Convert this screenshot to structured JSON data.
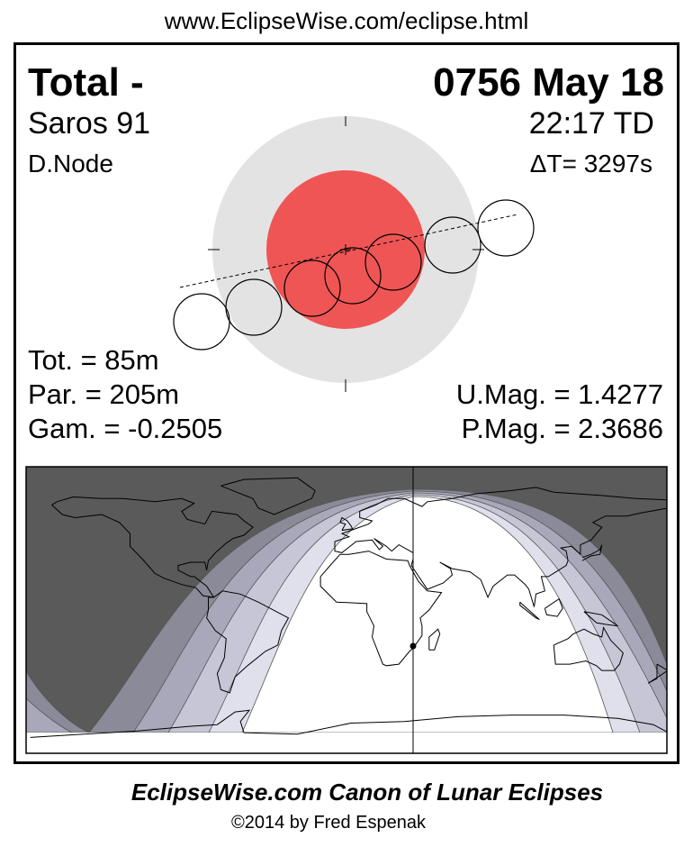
{
  "header": {
    "url": "www.EclipseWise.com/eclipse.html"
  },
  "eclipse": {
    "type": "Total  -",
    "date": "0756 May 18",
    "saros": "Saros  91",
    "time": "22:17 TD",
    "node": "D.Node",
    "delta_t": "ΔT=   3297s",
    "totality": "Tot. =  85m",
    "partial": "Par. = 205m",
    "gamma": "Gam. = -0.2505",
    "umbral_mag": "U.Mag. = 1.4277",
    "penumbral_mag": "P.Mag. = 2.3686"
  },
  "colors": {
    "umbra": "#ef5555",
    "penumbra": "#e3e3e3",
    "night": "#5a5a5a",
    "bands": [
      "#8a8a98",
      "#a8a8ba",
      "#c6c6d6",
      "#e0e0ec",
      "#ffffff"
    ]
  },
  "footer": {
    "canon": "EclipseWise.com Canon of Lunar Eclipses",
    "copyright": "©2014 by Fred Espenak"
  }
}
